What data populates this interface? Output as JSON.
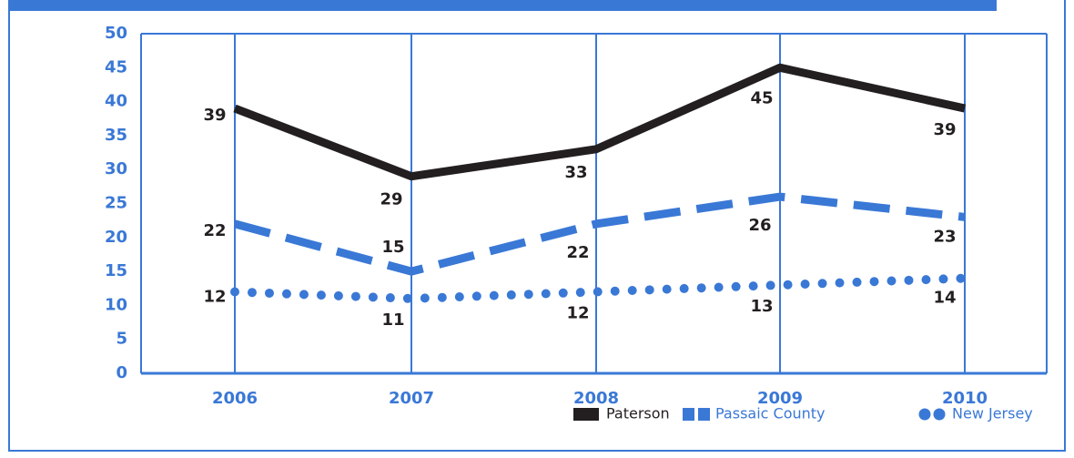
{
  "chart_data": {
    "type": "line",
    "categories": [
      "2006",
      "2007",
      "2008",
      "2009",
      "2010"
    ],
    "series": [
      {
        "name": "Paterson",
        "color": "#231f20",
        "line_style": "solid",
        "values": [
          39,
          29,
          33,
          45,
          39
        ]
      },
      {
        "name": "Passaic County",
        "color": "#3a78d6",
        "line_style": "dashed",
        "values": [
          22,
          15,
          22,
          26,
          23
        ]
      },
      {
        "name": "New Jersey",
        "color": "#3a78d6",
        "line_style": "dotted",
        "values": [
          12,
          11,
          12,
          13,
          14
        ]
      }
    ],
    "ylim": [
      0,
      50
    ],
    "yticks": [
      0,
      5,
      10,
      15,
      20,
      25,
      30,
      35,
      40,
      45,
      50
    ],
    "grid": "vertical",
    "legend": "bottom-right"
  }
}
